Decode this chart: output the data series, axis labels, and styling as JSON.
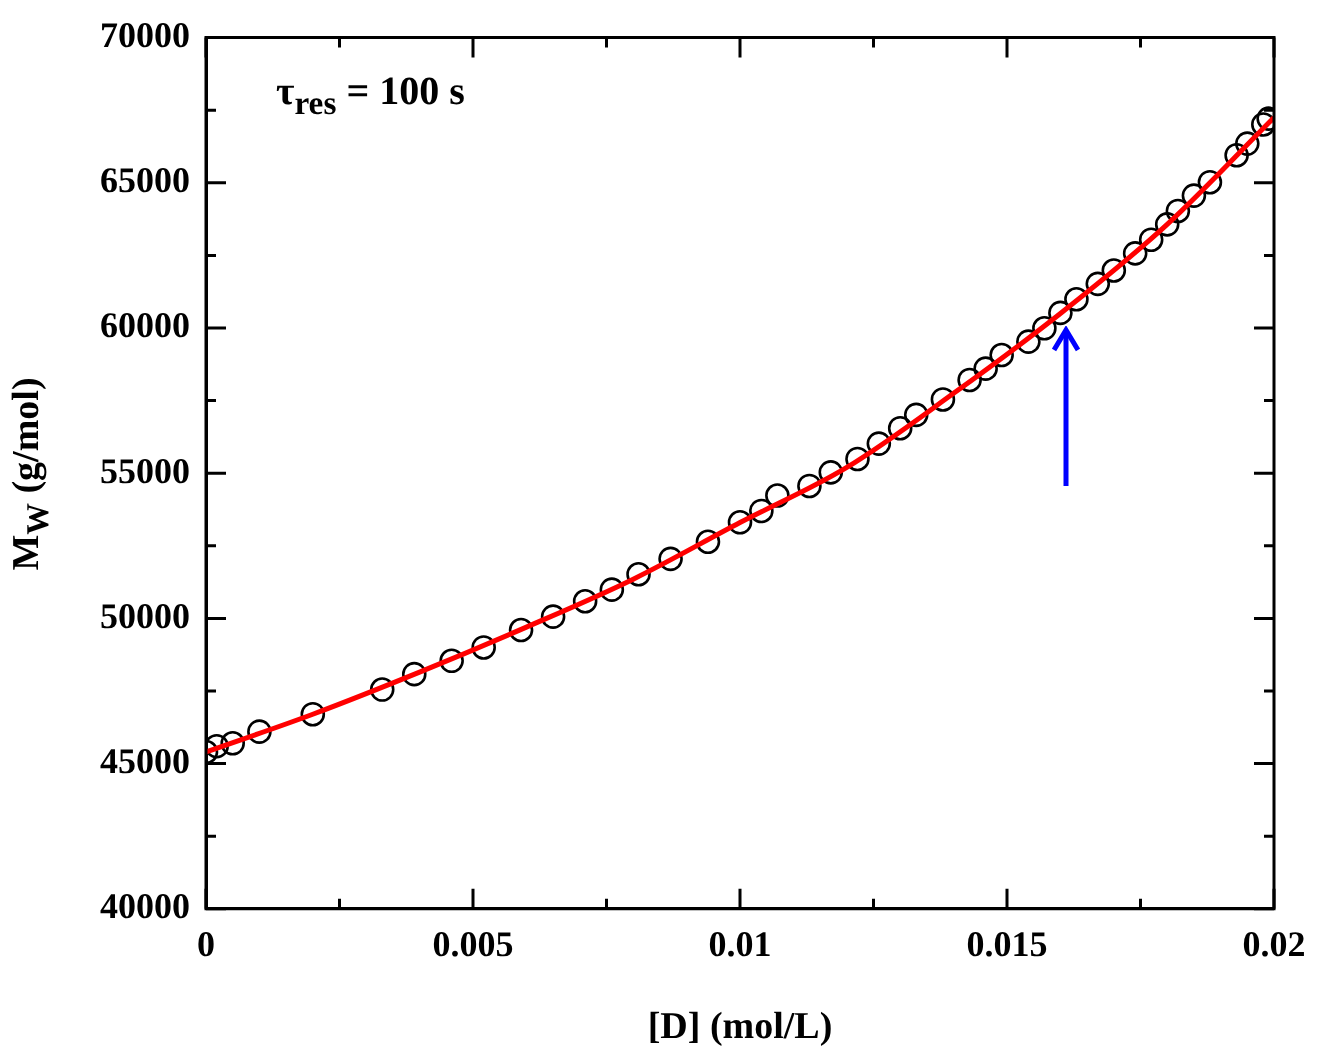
{
  "chart_data": {
    "type": "scatter",
    "xlabel": "[D] (mol/L)",
    "ylabel": "M$_{W}$ (g/mol)",
    "annotations": [
      "τ$_{res}$ = 100 s"
    ],
    "xlim": [
      0,
      0.02
    ],
    "ylim": [
      40000,
      70000
    ],
    "xticks": [
      0,
      {
        "value": 0.0025,
        "label": null
      },
      0.005,
      {
        "value": 0.0075,
        "label": null
      },
      0.01,
      {
        "value": 0.0125,
        "label": null
      },
      0.015,
      {
        "value": 0.0175,
        "label": null
      },
      0.02
    ],
    "yticks": [
      40000,
      {
        "value": 42500,
        "label": null
      },
      45000,
      {
        "value": 47500,
        "label": null
      },
      50000,
      {
        "value": 52500,
        "label": null
      },
      55000,
      {
        "value": 57500,
        "label": null
      },
      60000,
      {
        "value": 62500,
        "label": null
      },
      65000,
      {
        "value": 67500,
        "label": null
      },
      70000
    ],
    "grid": false,
    "legend": false,
    "series": [
      {
        "type": "line",
        "color": "#ff0000",
        "marker": "none",
        "x": [
          0,
          0.002,
          0.004,
          0.006,
          0.008,
          0.01,
          0.012,
          0.014,
          0.016,
          0.018,
          0.02
        ],
        "values": [
          45400,
          46700,
          48150,
          49700,
          51350,
          53300,
          55200,
          57750,
          60500,
          63570,
          67250
        ]
      },
      {
        "type": "scatter",
        "color": "#000000",
        "marker": "circle",
        "x": [
          0,
          0.0002,
          0.0005,
          0.001,
          0.002,
          0.0033,
          0.0039,
          0.0046,
          0.0052,
          0.0059,
          0.0065,
          0.0071,
          0.0076,
          0.0081,
          0.0087,
          0.0094,
          0.01,
          0.0104,
          0.0107,
          0.0113,
          0.0117,
          0.0122,
          0.0126,
          0.013,
          0.0133,
          0.0138,
          0.0143,
          0.0146,
          0.0149,
          0.0154,
          0.0157,
          0.016,
          0.0163,
          0.0167,
          0.017,
          0.0174,
          0.0177,
          0.018,
          0.0182,
          0.0185,
          0.0188,
          0.0193,
          0.0195,
          0.0198,
          0.0199
        ],
        "values": [
          45400,
          45600,
          45700,
          46100,
          46700,
          47550,
          48080,
          48540,
          49000,
          49600,
          50060,
          50590,
          50990,
          51520,
          52050,
          52640,
          53310,
          53700,
          54230,
          54560,
          55030,
          55490,
          56020,
          56550,
          57010,
          57540,
          58210,
          58600,
          59070,
          59530,
          59990,
          60520,
          60990,
          61520,
          61980,
          62570,
          63040,
          63570,
          64030,
          64560,
          65020,
          65950,
          66350,
          67010,
          67210
        ]
      }
    ]
  }
}
